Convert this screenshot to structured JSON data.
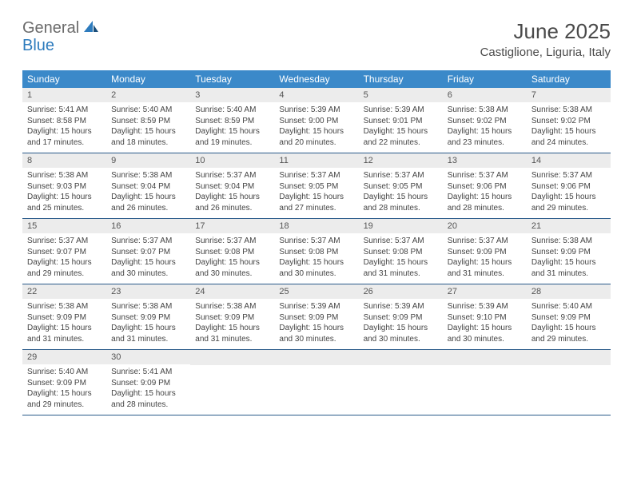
{
  "logo": {
    "text1": "General",
    "text2": "Blue",
    "text1_color": "#6b6b6b",
    "text2_color": "#2d7bbd"
  },
  "title": "June 2025",
  "location": "Castiglione, Liguria, Italy",
  "colors": {
    "header_bg": "#3b89c9",
    "header_text": "#ffffff",
    "daynum_bg": "#ececec",
    "border": "#2a5a8a"
  },
  "day_names": [
    "Sunday",
    "Monday",
    "Tuesday",
    "Wednesday",
    "Thursday",
    "Friday",
    "Saturday"
  ],
  "weeks": [
    [
      {
        "num": "1",
        "sunrise": "Sunrise: 5:41 AM",
        "sunset": "Sunset: 8:58 PM",
        "daylight": "Daylight: 15 hours and 17 minutes."
      },
      {
        "num": "2",
        "sunrise": "Sunrise: 5:40 AM",
        "sunset": "Sunset: 8:59 PM",
        "daylight": "Daylight: 15 hours and 18 minutes."
      },
      {
        "num": "3",
        "sunrise": "Sunrise: 5:40 AM",
        "sunset": "Sunset: 8:59 PM",
        "daylight": "Daylight: 15 hours and 19 minutes."
      },
      {
        "num": "4",
        "sunrise": "Sunrise: 5:39 AM",
        "sunset": "Sunset: 9:00 PM",
        "daylight": "Daylight: 15 hours and 20 minutes."
      },
      {
        "num": "5",
        "sunrise": "Sunrise: 5:39 AM",
        "sunset": "Sunset: 9:01 PM",
        "daylight": "Daylight: 15 hours and 22 minutes."
      },
      {
        "num": "6",
        "sunrise": "Sunrise: 5:38 AM",
        "sunset": "Sunset: 9:02 PM",
        "daylight": "Daylight: 15 hours and 23 minutes."
      },
      {
        "num": "7",
        "sunrise": "Sunrise: 5:38 AM",
        "sunset": "Sunset: 9:02 PM",
        "daylight": "Daylight: 15 hours and 24 minutes."
      }
    ],
    [
      {
        "num": "8",
        "sunrise": "Sunrise: 5:38 AM",
        "sunset": "Sunset: 9:03 PM",
        "daylight": "Daylight: 15 hours and 25 minutes."
      },
      {
        "num": "9",
        "sunrise": "Sunrise: 5:38 AM",
        "sunset": "Sunset: 9:04 PM",
        "daylight": "Daylight: 15 hours and 26 minutes."
      },
      {
        "num": "10",
        "sunrise": "Sunrise: 5:37 AM",
        "sunset": "Sunset: 9:04 PM",
        "daylight": "Daylight: 15 hours and 26 minutes."
      },
      {
        "num": "11",
        "sunrise": "Sunrise: 5:37 AM",
        "sunset": "Sunset: 9:05 PM",
        "daylight": "Daylight: 15 hours and 27 minutes."
      },
      {
        "num": "12",
        "sunrise": "Sunrise: 5:37 AM",
        "sunset": "Sunset: 9:05 PM",
        "daylight": "Daylight: 15 hours and 28 minutes."
      },
      {
        "num": "13",
        "sunrise": "Sunrise: 5:37 AM",
        "sunset": "Sunset: 9:06 PM",
        "daylight": "Daylight: 15 hours and 28 minutes."
      },
      {
        "num": "14",
        "sunrise": "Sunrise: 5:37 AM",
        "sunset": "Sunset: 9:06 PM",
        "daylight": "Daylight: 15 hours and 29 minutes."
      }
    ],
    [
      {
        "num": "15",
        "sunrise": "Sunrise: 5:37 AM",
        "sunset": "Sunset: 9:07 PM",
        "daylight": "Daylight: 15 hours and 29 minutes."
      },
      {
        "num": "16",
        "sunrise": "Sunrise: 5:37 AM",
        "sunset": "Sunset: 9:07 PM",
        "daylight": "Daylight: 15 hours and 30 minutes."
      },
      {
        "num": "17",
        "sunrise": "Sunrise: 5:37 AM",
        "sunset": "Sunset: 9:08 PM",
        "daylight": "Daylight: 15 hours and 30 minutes."
      },
      {
        "num": "18",
        "sunrise": "Sunrise: 5:37 AM",
        "sunset": "Sunset: 9:08 PM",
        "daylight": "Daylight: 15 hours and 30 minutes."
      },
      {
        "num": "19",
        "sunrise": "Sunrise: 5:37 AM",
        "sunset": "Sunset: 9:08 PM",
        "daylight": "Daylight: 15 hours and 31 minutes."
      },
      {
        "num": "20",
        "sunrise": "Sunrise: 5:37 AM",
        "sunset": "Sunset: 9:09 PM",
        "daylight": "Daylight: 15 hours and 31 minutes."
      },
      {
        "num": "21",
        "sunrise": "Sunrise: 5:38 AM",
        "sunset": "Sunset: 9:09 PM",
        "daylight": "Daylight: 15 hours and 31 minutes."
      }
    ],
    [
      {
        "num": "22",
        "sunrise": "Sunrise: 5:38 AM",
        "sunset": "Sunset: 9:09 PM",
        "daylight": "Daylight: 15 hours and 31 minutes."
      },
      {
        "num": "23",
        "sunrise": "Sunrise: 5:38 AM",
        "sunset": "Sunset: 9:09 PM",
        "daylight": "Daylight: 15 hours and 31 minutes."
      },
      {
        "num": "24",
        "sunrise": "Sunrise: 5:38 AM",
        "sunset": "Sunset: 9:09 PM",
        "daylight": "Daylight: 15 hours and 31 minutes."
      },
      {
        "num": "25",
        "sunrise": "Sunrise: 5:39 AM",
        "sunset": "Sunset: 9:09 PM",
        "daylight": "Daylight: 15 hours and 30 minutes."
      },
      {
        "num": "26",
        "sunrise": "Sunrise: 5:39 AM",
        "sunset": "Sunset: 9:09 PM",
        "daylight": "Daylight: 15 hours and 30 minutes."
      },
      {
        "num": "27",
        "sunrise": "Sunrise: 5:39 AM",
        "sunset": "Sunset: 9:10 PM",
        "daylight": "Daylight: 15 hours and 30 minutes."
      },
      {
        "num": "28",
        "sunrise": "Sunrise: 5:40 AM",
        "sunset": "Sunset: 9:09 PM",
        "daylight": "Daylight: 15 hours and 29 minutes."
      }
    ],
    [
      {
        "num": "29",
        "sunrise": "Sunrise: 5:40 AM",
        "sunset": "Sunset: 9:09 PM",
        "daylight": "Daylight: 15 hours and 29 minutes."
      },
      {
        "num": "30",
        "sunrise": "Sunrise: 5:41 AM",
        "sunset": "Sunset: 9:09 PM",
        "daylight": "Daylight: 15 hours and 28 minutes."
      },
      null,
      null,
      null,
      null,
      null
    ]
  ]
}
